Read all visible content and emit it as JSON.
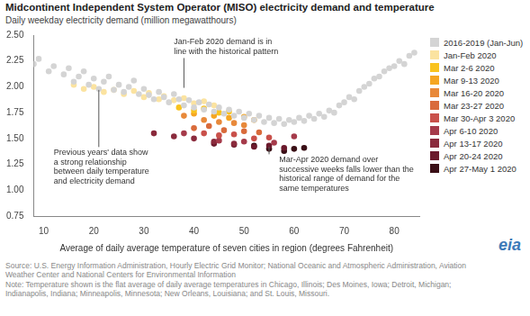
{
  "chart_data": {
    "type": "scatter",
    "title": "Midcontinent Independent System Operator (MISO) electricity demand and temperature",
    "subtitle": "Daily weekday electricity demand (million megawatthours)",
    "x_label": "Average of daily average temperature of seven cities in region (degrees Fahrenheit)",
    "xlim": [
      8,
      85
    ],
    "xticks": [
      10,
      20,
      30,
      40,
      50,
      60,
      70,
      80
    ],
    "ylim": [
      0.75,
      2.5
    ],
    "yticks": [
      {
        "value": 0.75,
        "label": "0.75"
      },
      {
        "value": 1,
        "label": "1.00"
      },
      {
        "value": 1.25,
        "label": "1.25"
      },
      {
        "value": 1.5,
        "label": "1.50"
      },
      {
        "value": 1.75,
        "label": "1.75"
      },
      {
        "value": 2,
        "label": "2.00"
      },
      {
        "value": 2.25,
        "label": "2.25"
      },
      {
        "value": 2.5,
        "label": "2.50"
      }
    ],
    "grid": false,
    "legend": "right",
    "marker": "circle",
    "annotations": [
      {
        "text": "Jan-Feb 2020 demand is in line with the historical pattern"
      },
      {
        "text": "Previous years' data show a strong relationship between daily temperature and electricity demand"
      },
      {
        "text": "Mar-Apr 2020 demand over successive weeks falls lower than the historical range of demand for the same temperatures"
      }
    ],
    "source": "Source: U.S. Energy Information Administration, Hourly Electric Grid Monitor; National Oceanic and Atmospheric Administration, Aviation Weather Center and National Centers for Environmental Information",
    "note": "Note: Temperature shown is the flat average of daily average temperatures in Chicago, Illinois; Des Moines, Iowa; Detroit, Michigan; Indianapolis, Indiana; Minneapolis, Minnesota; New Orleans, Louisiana; and St. Louis, Missouri.",
    "logo": "eia",
    "series": [
      {
        "name": "2016-2019 (Jan-Jun)",
        "color": "#d4d4d4",
        "x": [
          8,
          9,
          11,
          12,
          14,
          15,
          16,
          17,
          18,
          19,
          20,
          21,
          22,
          23,
          24,
          25,
          26,
          27,
          28,
          29,
          30,
          31,
          32,
          33,
          34,
          35,
          36,
          37,
          38,
          39,
          40,
          41,
          42,
          43,
          44,
          45,
          46,
          47,
          48,
          49,
          50,
          51,
          52,
          53,
          54,
          55,
          56,
          57,
          58,
          59,
          60,
          61,
          62,
          63,
          64,
          65,
          66,
          67,
          68,
          69,
          70,
          71,
          72,
          73,
          74,
          75,
          76,
          77,
          78,
          79,
          80,
          81,
          82,
          83,
          84
        ],
        "values": [
          2.22,
          2.27,
          2.15,
          2.2,
          2.12,
          2.18,
          2.05,
          2.1,
          2.15,
          2.02,
          2.08,
          1.98,
          2.05,
          2.1,
          1.97,
          2.02,
          1.95,
          2.0,
          2.06,
          1.93,
          1.98,
          1.92,
          1.88,
          1.95,
          1.9,
          1.85,
          1.93,
          1.88,
          1.82,
          1.87,
          1.8,
          1.85,
          1.78,
          1.83,
          1.76,
          1.8,
          1.74,
          1.78,
          1.72,
          1.76,
          1.7,
          1.74,
          1.68,
          1.72,
          1.66,
          1.7,
          1.65,
          1.69,
          1.64,
          1.68,
          1.66,
          1.7,
          1.67,
          1.72,
          1.69,
          1.74,
          1.71,
          1.77,
          1.75,
          1.82,
          1.85,
          1.9,
          1.88,
          1.96,
          2.0,
          2.03,
          2.08,
          2.1,
          2.15,
          2.18,
          2.2,
          2.25,
          2.22,
          2.3,
          2.33
        ]
      },
      {
        "name": "Jan-Feb 2020",
        "color": "#fbe3a0",
        "x": [
          16,
          18,
          20,
          22,
          24,
          26,
          28,
          30,
          31,
          33,
          34,
          36,
          38,
          40,
          42,
          44
        ],
        "values": [
          2.02,
          1.98,
          2.0,
          1.95,
          1.97,
          1.93,
          1.96,
          1.9,
          1.94,
          1.88,
          1.91,
          1.87,
          1.89,
          1.84,
          1.86,
          1.82
        ]
      },
      {
        "name": "Mar 2-6 2020",
        "color": "#f9c31f",
        "x": [
          37,
          40,
          42,
          45,
          47
        ],
        "values": [
          1.8,
          1.77,
          1.79,
          1.75,
          1.76
        ]
      },
      {
        "name": "Mar 9-13 2020",
        "color": "#f5a623",
        "x": [
          40,
          44,
          47,
          50,
          52
        ],
        "values": [
          1.74,
          1.72,
          1.7,
          1.71,
          1.68
        ]
      },
      {
        "name": "Mar 16-20 2020",
        "color": "#e8893a",
        "x": [
          38,
          42,
          45,
          48,
          50
        ],
        "values": [
          1.72,
          1.68,
          1.66,
          1.65,
          1.63
        ]
      },
      {
        "name": "Mar 23-27 2020",
        "color": "#d96b3b",
        "x": [
          40,
          43,
          46,
          50,
          53
        ],
        "values": [
          1.6,
          1.62,
          1.58,
          1.57,
          1.56
        ]
      },
      {
        "name": "Mar 30-Apr 3 2020",
        "color": "#c9504a",
        "x": [
          42,
          45,
          48,
          52,
          55
        ],
        "values": [
          1.55,
          1.53,
          1.54,
          1.5,
          1.51
        ]
      },
      {
        "name": "Apr 6-10 2020",
        "color": "#a53a4a",
        "x": [
          38,
          45,
          50,
          56,
          60
        ],
        "values": [
          1.55,
          1.48,
          1.47,
          1.46,
          1.52
        ]
      },
      {
        "name": "Apr 13-17 2020",
        "color": "#8a2a3c",
        "x": [
          32,
          36,
          40,
          44,
          48
        ],
        "values": [
          1.55,
          1.52,
          1.5,
          1.47,
          1.45
        ]
      },
      {
        "name": "Apr 20-24 2020",
        "color": "#6b1a2c",
        "x": [
          44,
          48,
          52,
          55,
          58
        ],
        "values": [
          1.45,
          1.44,
          1.42,
          1.43,
          1.41
        ]
      },
      {
        "name": "Apr 27-May 1 2020",
        "color": "#3a0f16",
        "x": [
          52,
          55,
          58,
          60,
          62
        ],
        "values": [
          1.43,
          1.4,
          1.38,
          1.4,
          1.41
        ]
      }
    ]
  }
}
